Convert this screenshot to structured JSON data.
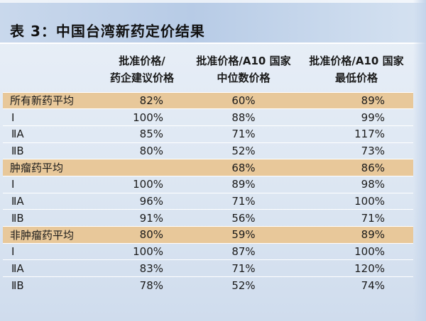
{
  "title": "表 3：中国台湾新药定价结果",
  "columns": [
    "",
    "批准价格/\n药企建议价格",
    "批准价格/A10 国家\n中位数价格",
    "批准价格/A10 国家\n最低价格"
  ],
  "rows": [
    {
      "label": "所有新药平均",
      "c1": "82%",
      "c2": "60%",
      "c3": "89%",
      "group": true
    },
    {
      "label": "Ⅰ",
      "c1": "100%",
      "c2": "88%",
      "c3": "99%",
      "group": false
    },
    {
      "label": "ⅡA",
      "c1": "85%",
      "c2": "71%",
      "c3": "117%",
      "group": false
    },
    {
      "label": "ⅡB",
      "c1": "80%",
      "c2": "52%",
      "c3": "73%",
      "group": false
    },
    {
      "label": "肿瘤药平均",
      "c1": "",
      "c2": "68%",
      "c3": "86%",
      "group": true
    },
    {
      "label": "Ⅰ",
      "c1": "100%",
      "c2": "89%",
      "c3": "98%",
      "group": false
    },
    {
      "label": "ⅡA",
      "c1": "96%",
      "c2": "71%",
      "c3": "100%",
      "group": false
    },
    {
      "label": "ⅡB",
      "c1": "91%",
      "c2": "56%",
      "c3": "71%",
      "group": false
    },
    {
      "label": "非肿瘤药平均",
      "c1": "80%",
      "c2": "59%",
      "c3": "89%",
      "group": true
    },
    {
      "label": "Ⅰ",
      "c1": "100%",
      "c2": "87%",
      "c3": "100%",
      "group": false
    },
    {
      "label": "ⅡA",
      "c1": "83%",
      "c2": "71%",
      "c3": "120%",
      "group": false
    },
    {
      "label": "ⅡB",
      "c1": "78%",
      "c2": "52%",
      "c3": "74%",
      "group": false
    }
  ],
  "colors": {
    "group_row": "#e8c89a",
    "title_bar": "#b7cbe6",
    "panel": "#dce6f2"
  }
}
